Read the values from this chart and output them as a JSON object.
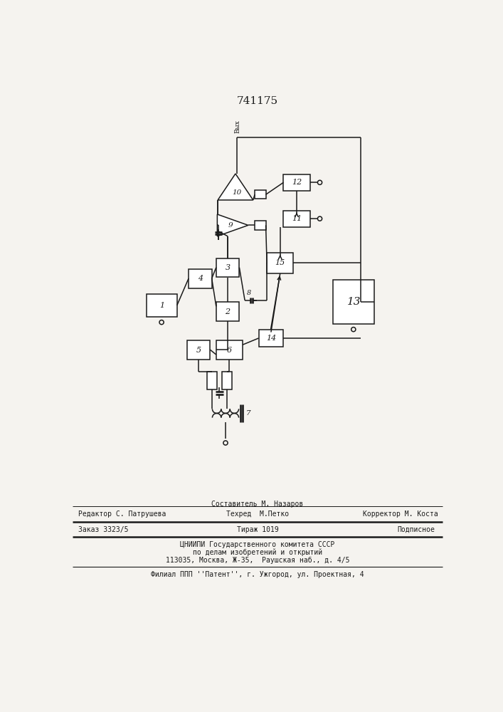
{
  "title": "741175",
  "bg_color": "#f5f3ef",
  "line_color": "#1a1a1a",
  "lw": 1.1,
  "footer": {
    "line1_left": "Редактор С. Патрушева",
    "line1_center": "Составитель М. Назаров",
    "line2_center": "Техред  М.Петко",
    "line2_right": "Корректор М. Коста",
    "line3_left": "Заказ 3323/5",
    "line3_center": "Тираж 1019",
    "line3_right": "Подписное",
    "line4": "ЦНИИПИ Государственного комитета СССР",
    "line5": "по делам изобретений и открытий",
    "line6": "113035, Москва, Ж-35,  Раушская наб., д. 4/5",
    "line7": "Филиал ППП ''Патент'', г. Ужгород, ул. Проектная, 4"
  }
}
